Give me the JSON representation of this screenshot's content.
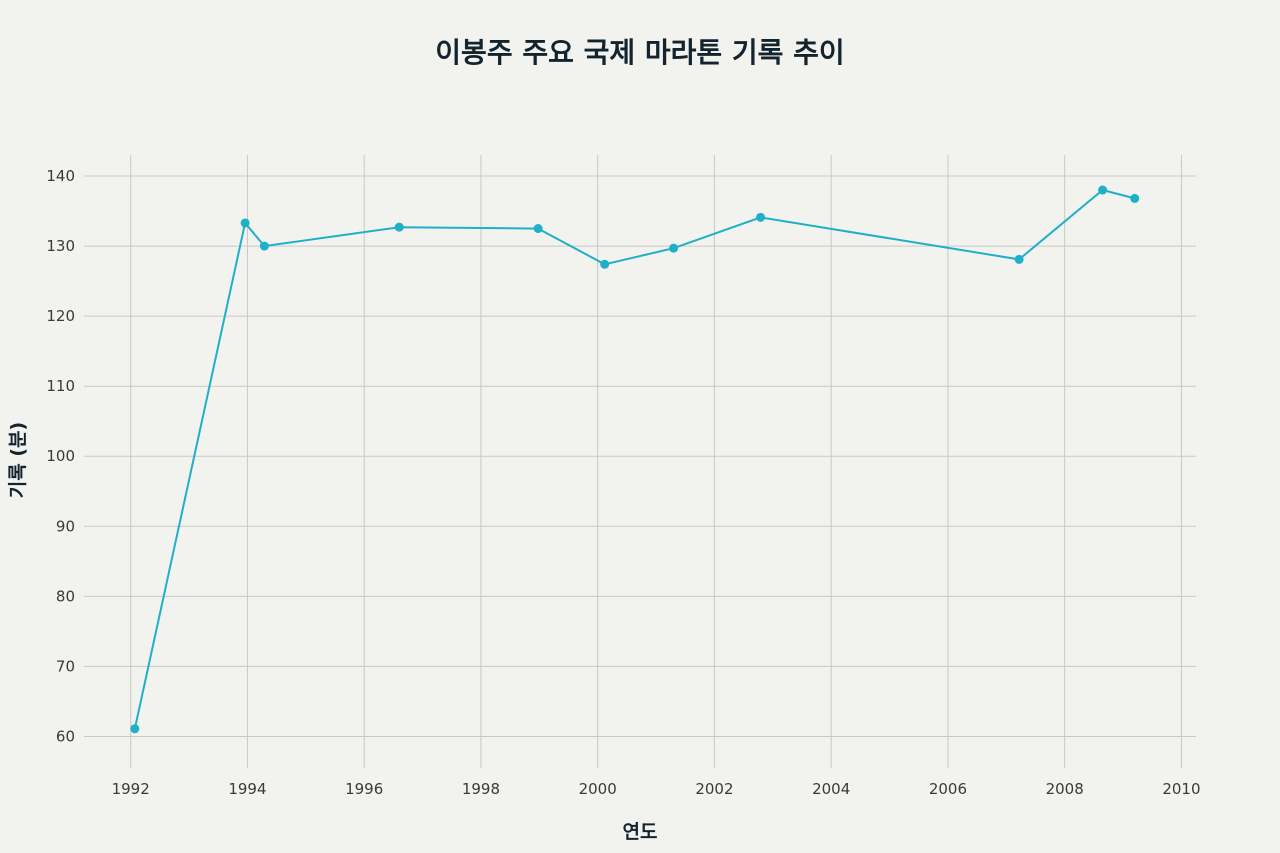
{
  "chart_data": {
    "type": "line",
    "title": "이봉주 주요 국제 마라톤 기록 추이",
    "xlabel": "연도",
    "ylabel": "기록 (분)",
    "xlim": [
      1991.2,
      2010.25
    ],
    "ylim": [
      55.5,
      143
    ],
    "x_ticks": [
      1992,
      1994,
      1996,
      1998,
      2000,
      2002,
      2004,
      2006,
      2008,
      2010
    ],
    "x_tick_labels": [
      "1992",
      "1994",
      "1996",
      "1998",
      "2000",
      "2002",
      "2004",
      "2006",
      "2008",
      "2010"
    ],
    "y_ticks": [
      60,
      70,
      80,
      90,
      100,
      110,
      120,
      130,
      140
    ],
    "y_tick_labels": [
      "60",
      "70",
      "80",
      "90",
      "100",
      "110",
      "120",
      "130",
      "140"
    ],
    "grid": true,
    "legend": false,
    "series": [
      {
        "color": "#1fb0c7",
        "x": [
          1992.07,
          1993.96,
          1994.29,
          1996.6,
          1998.98,
          2000.12,
          2001.3,
          2002.79,
          2007.22,
          2008.65,
          2009.2
        ],
        "y": [
          61.1,
          133.3,
          130.0,
          132.7,
          132.5,
          127.4,
          129.7,
          134.1,
          128.1,
          138.0,
          136.8
        ]
      }
    ]
  }
}
